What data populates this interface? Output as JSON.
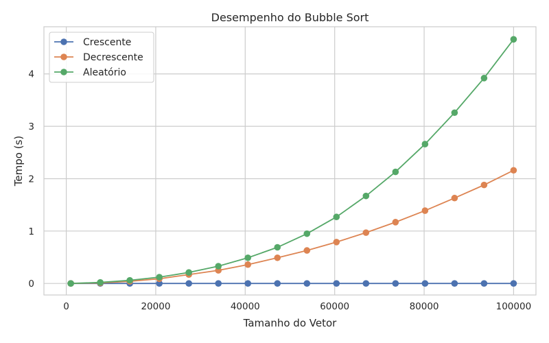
{
  "chart_data": {
    "type": "line",
    "title": "Desempenho do Bubble Sort",
    "xlabel": "Tamanho do Vetor",
    "ylabel": "Tempo (s)",
    "xlim": [
      -5000,
      105000
    ],
    "ylim": [
      -0.22,
      4.9
    ],
    "xticks": [
      0,
      20000,
      40000,
      60000,
      80000,
      100000
    ],
    "yticks": [
      0,
      1,
      2,
      3,
      4
    ],
    "grid": true,
    "legend_position": "top-left",
    "x": [
      1000,
      7600,
      14200,
      20800,
      27400,
      34000,
      40600,
      47200,
      53800,
      60400,
      67000,
      73600,
      80200,
      86800,
      93400,
      100000
    ],
    "series": [
      {
        "name": "Crescente",
        "color": "#4c72b0",
        "values": [
          0.0,
          0.0,
          0.0,
          0.0,
          0.0,
          0.0,
          0.0,
          0.0,
          0.0,
          0.0,
          0.0,
          0.0,
          0.0,
          0.0,
          0.0,
          0.0
        ]
      },
      {
        "name": "Decrescente",
        "color": "#dd8452",
        "values": [
          0.0,
          0.01,
          0.04,
          0.09,
          0.17,
          0.25,
          0.36,
          0.49,
          0.63,
          0.79,
          0.97,
          1.17,
          1.39,
          1.63,
          1.88,
          2.16
        ]
      },
      {
        "name": "Aleatório",
        "color": "#55a868",
        "values": [
          0.0,
          0.02,
          0.06,
          0.12,
          0.21,
          0.33,
          0.49,
          0.69,
          0.95,
          1.27,
          1.67,
          2.13,
          2.66,
          3.26,
          3.92,
          4.66
        ]
      }
    ]
  }
}
